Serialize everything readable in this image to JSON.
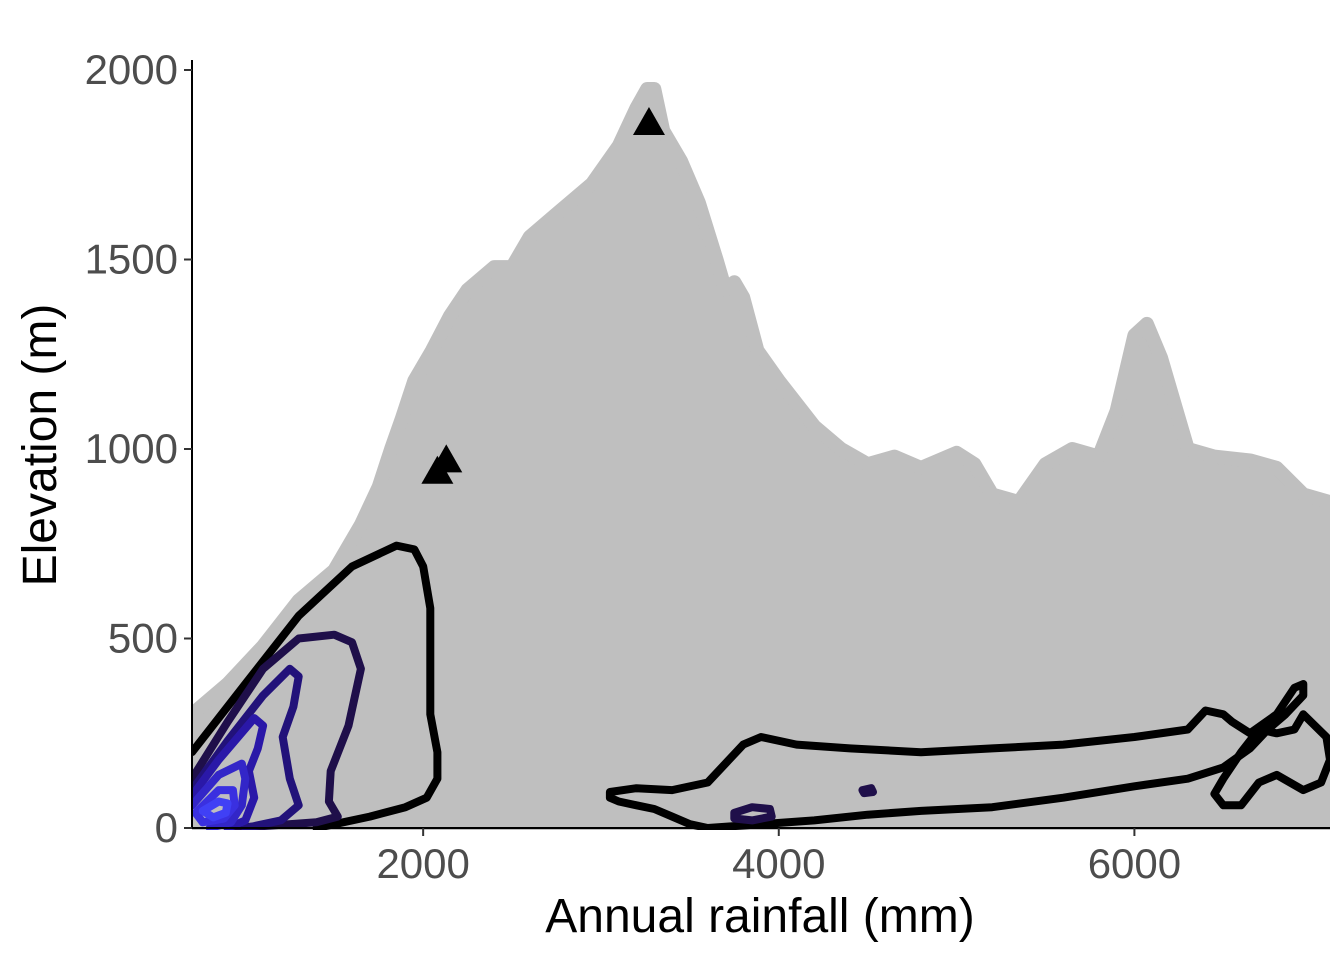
{
  "chart_data": {
    "type": "scatter",
    "xlabel": "Annual rainfall (mm)",
    "ylabel": "Elevation (m)",
    "xlim": [
      700,
      7100
    ],
    "ylim": [
      0,
      2000
    ],
    "x_ticks": [
      2000,
      4000,
      6000
    ],
    "y_ticks": [
      0,
      500,
      1000,
      1500,
      2000
    ],
    "grid": false,
    "legend": "none",
    "colors": {
      "points": "#bfbfbf",
      "markers": "#000000",
      "contour_outer": "#000000",
      "contour_mid": "#1f0f4a",
      "contour_inner": "#2a18a8",
      "contour_core": "#3f3af0"
    },
    "background_points_envelope": [
      [
        700,
        0
      ],
      [
        700,
        300
      ],
      [
        900,
        380
      ],
      [
        1100,
        480
      ],
      [
        1300,
        600
      ],
      [
        1500,
        680
      ],
      [
        1650,
        800
      ],
      [
        1750,
        900
      ],
      [
        1820,
        1000
      ],
      [
        1880,
        1080
      ],
      [
        1950,
        1180
      ],
      [
        2050,
        1260
      ],
      [
        2150,
        1350
      ],
      [
        2250,
        1420
      ],
      [
        2400,
        1480
      ],
      [
        2500,
        1480
      ],
      [
        2600,
        1560
      ],
      [
        2750,
        1620
      ],
      [
        2850,
        1660
      ],
      [
        2950,
        1700
      ],
      [
        3100,
        1800
      ],
      [
        3200,
        1900
      ],
      [
        3260,
        1950
      ],
      [
        3300,
        1950
      ],
      [
        3350,
        1840
      ],
      [
        3450,
        1760
      ],
      [
        3550,
        1650
      ],
      [
        3650,
        1500
      ],
      [
        3700,
        1420
      ],
      [
        3750,
        1440
      ],
      [
        3800,
        1400
      ],
      [
        3880,
        1260
      ],
      [
        4000,
        1180
      ],
      [
        4200,
        1060
      ],
      [
        4350,
        1000
      ],
      [
        4500,
        960
      ],
      [
        4650,
        980
      ],
      [
        4800,
        950
      ],
      [
        5000,
        990
      ],
      [
        5100,
        960
      ],
      [
        5200,
        880
      ],
      [
        5350,
        860
      ],
      [
        5500,
        960
      ],
      [
        5650,
        1000
      ],
      [
        5800,
        980
      ],
      [
        5900,
        1100
      ],
      [
        6000,
        1300
      ],
      [
        6070,
        1330
      ],
      [
        6150,
        1240
      ],
      [
        6300,
        1000
      ],
      [
        6450,
        980
      ],
      [
        6650,
        970
      ],
      [
        6800,
        950
      ],
      [
        6950,
        880
      ],
      [
        7100,
        860
      ],
      [
        7100,
        0
      ]
    ],
    "marker_points": [
      {
        "x": 3270,
        "y": 1860
      },
      {
        "x": 2130,
        "y": 970
      },
      {
        "x": 2080,
        "y": 940
      }
    ],
    "contours": [
      {
        "level": 1,
        "color": "#000000",
        "points": [
          [
            700,
            200
          ],
          [
            1000,
            380
          ],
          [
            1300,
            560
          ],
          [
            1600,
            690
          ],
          [
            1850,
            745
          ],
          [
            1950,
            735
          ],
          [
            2000,
            690
          ],
          [
            2040,
            580
          ],
          [
            2040,
            450
          ],
          [
            2040,
            300
          ],
          [
            2080,
            200
          ],
          [
            2080,
            130
          ],
          [
            2020,
            80
          ],
          [
            1900,
            55
          ],
          [
            1700,
            30
          ],
          [
            1500,
            10
          ],
          [
            1400,
            0
          ]
        ]
      },
      {
        "level": 1,
        "color": "#000000",
        "points": [
          [
            3050,
            80
          ],
          [
            3100,
            70
          ],
          [
            3200,
            60
          ],
          [
            3300,
            50
          ],
          [
            3400,
            30
          ],
          [
            3500,
            10
          ],
          [
            3600,
            0
          ],
          [
            3900,
            10
          ],
          [
            4200,
            20
          ],
          [
            4500,
            35
          ],
          [
            4800,
            45
          ],
          [
            5200,
            55
          ],
          [
            5600,
            80
          ],
          [
            6000,
            110
          ],
          [
            6300,
            130
          ],
          [
            6500,
            160
          ],
          [
            6650,
            210
          ],
          [
            6750,
            260
          ],
          [
            6850,
            300
          ],
          [
            6950,
            350
          ],
          [
            6950,
            380
          ],
          [
            6900,
            370
          ],
          [
            6800,
            300
          ],
          [
            6650,
            250
          ],
          [
            6550,
            280
          ],
          [
            6500,
            300
          ],
          [
            6400,
            310
          ],
          [
            6300,
            260
          ],
          [
            6000,
            240
          ],
          [
            5600,
            220
          ],
          [
            5200,
            210
          ],
          [
            4800,
            200
          ],
          [
            4400,
            210
          ],
          [
            4100,
            220
          ],
          [
            3900,
            240
          ],
          [
            3800,
            220
          ],
          [
            3700,
            170
          ],
          [
            3600,
            120
          ],
          [
            3400,
            100
          ],
          [
            3200,
            105
          ],
          [
            3050,
            95
          ],
          [
            3050,
            80
          ]
        ]
      },
      {
        "level": 1,
        "color": "#000000",
        "points": [
          [
            6950,
            300
          ],
          [
            7080,
            240
          ],
          [
            7100,
            180
          ],
          [
            7050,
            120
          ],
          [
            6950,
            100
          ],
          [
            6800,
            140
          ],
          [
            6700,
            120
          ],
          [
            6600,
            60
          ],
          [
            6500,
            60
          ],
          [
            6450,
            90
          ],
          [
            6500,
            130
          ],
          [
            6600,
            200
          ],
          [
            6650,
            230
          ],
          [
            6700,
            260
          ],
          [
            6800,
            250
          ],
          [
            6900,
            260
          ],
          [
            6950,
            300
          ]
        ]
      },
      {
        "level": 2,
        "color": "#1f0f4a",
        "points": [
          [
            700,
            130
          ],
          [
            900,
            280
          ],
          [
            1100,
            420
          ],
          [
            1300,
            500
          ],
          [
            1500,
            510
          ],
          [
            1600,
            490
          ],
          [
            1650,
            420
          ],
          [
            1580,
            270
          ],
          [
            1480,
            150
          ],
          [
            1470,
            70
          ],
          [
            1520,
            30
          ],
          [
            1400,
            15
          ],
          [
            1100,
            5
          ],
          [
            900,
            0
          ]
        ]
      },
      {
        "level": 2,
        "color": "#1f0f4a",
        "points": [
          [
            3750,
            40
          ],
          [
            3850,
            55
          ],
          [
            3950,
            50
          ],
          [
            3960,
            30
          ],
          [
            3850,
            20
          ],
          [
            3750,
            25
          ],
          [
            3750,
            40
          ]
        ]
      },
      {
        "level": 2,
        "color": "#1f0f4a",
        "points": [
          [
            4470,
            100
          ],
          [
            4520,
            105
          ],
          [
            4530,
            95
          ],
          [
            4480,
            92
          ],
          [
            4470,
            100
          ]
        ]
      },
      {
        "level": 3,
        "color": "#22127a",
        "points": [
          [
            700,
            100
          ],
          [
            900,
            230
          ],
          [
            1100,
            350
          ],
          [
            1250,
            420
          ],
          [
            1300,
            400
          ],
          [
            1270,
            320
          ],
          [
            1210,
            240
          ],
          [
            1250,
            130
          ],
          [
            1300,
            60
          ],
          [
            1200,
            20
          ],
          [
            1000,
            0
          ]
        ]
      },
      {
        "level": 4,
        "color": "#2a18a8",
        "points": [
          [
            700,
            85
          ],
          [
            850,
            180
          ],
          [
            1050,
            290
          ],
          [
            1100,
            270
          ],
          [
            1070,
            210
          ],
          [
            1020,
            150
          ],
          [
            1050,
            80
          ],
          [
            1000,
            20
          ],
          [
            900,
            0
          ]
        ]
      },
      {
        "level": 5,
        "color": "#3326c8",
        "points": [
          [
            700,
            60
          ],
          [
            850,
            140
          ],
          [
            980,
            170
          ],
          [
            1000,
            130
          ],
          [
            980,
            60
          ],
          [
            920,
            15
          ],
          [
            800,
            0
          ]
        ]
      },
      {
        "level": 6,
        "color": "#3a30e0",
        "points": [
          [
            720,
            40
          ],
          [
            850,
            100
          ],
          [
            930,
            100
          ],
          [
            940,
            60
          ],
          [
            880,
            25
          ],
          [
            760,
            15
          ],
          [
            720,
            40
          ]
        ]
      },
      {
        "level": 7,
        "color": "#4040f5",
        "points": [
          [
            760,
            45
          ],
          [
            850,
            70
          ],
          [
            900,
            65
          ],
          [
            890,
            40
          ],
          [
            820,
            28
          ],
          [
            760,
            45
          ]
        ]
      }
    ]
  }
}
